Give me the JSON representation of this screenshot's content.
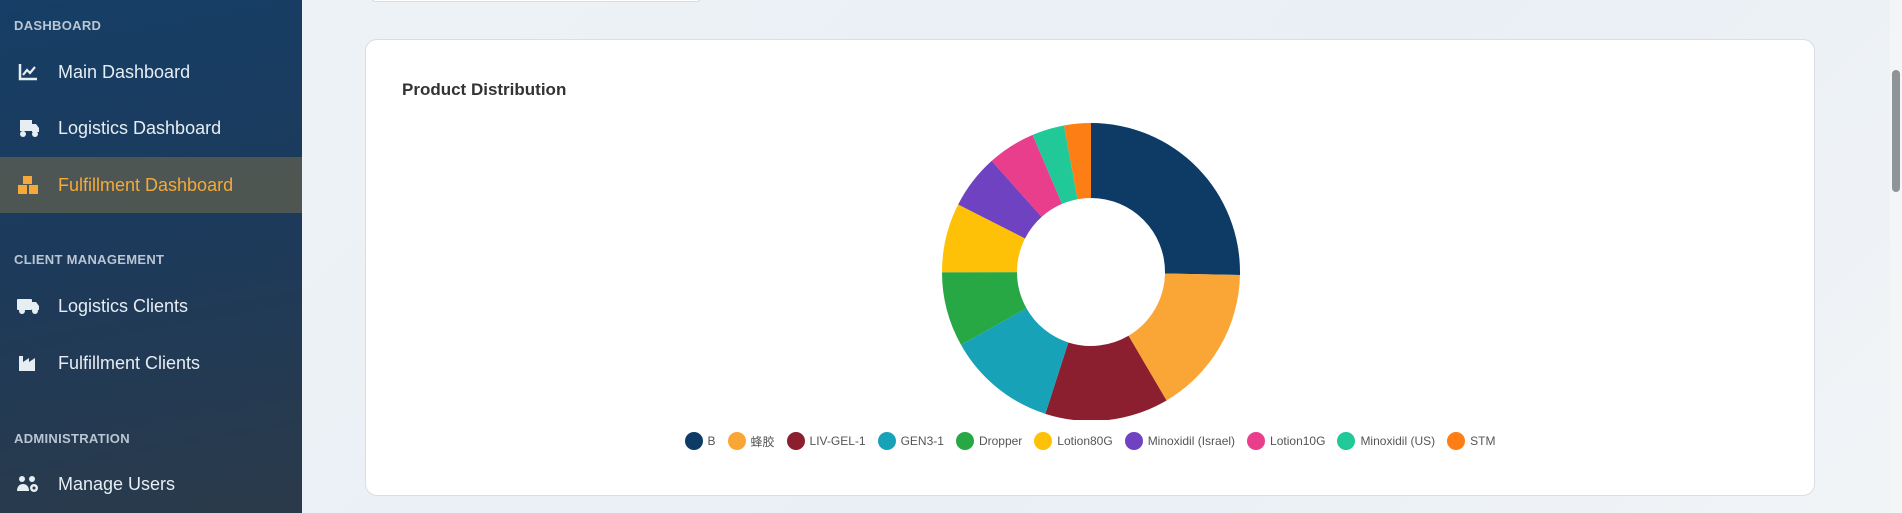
{
  "sidebar": {
    "sections": [
      "DASHBOARD",
      "CLIENT MANAGEMENT",
      "ADMINISTRATION"
    ],
    "items": [
      {
        "label": "Main Dashboard",
        "icon": "chart-line-icon"
      },
      {
        "label": "Logistics Dashboard",
        "icon": "truck-fast-icon"
      },
      {
        "label": "Fulfillment Dashboard",
        "icon": "boxes-icon",
        "active": true
      },
      {
        "label": "Logistics Clients",
        "icon": "truck-icon"
      },
      {
        "label": "Fulfillment Clients",
        "icon": "industry-icon"
      },
      {
        "label": "Manage Users",
        "icon": "users-cog-icon"
      }
    ],
    "active_color": "#f4a93a"
  },
  "card": {
    "title": "Product Distribution"
  },
  "chart_data": {
    "type": "pie",
    "donut": true,
    "title": "Product Distribution",
    "legend": "bottom",
    "categories": [
      "B",
      "蜂胶",
      "LIV-GEL-1",
      "GEN3-1",
      "Dropper",
      "Lotion80G",
      "Minoxidil (Israel)",
      "Lotion10G",
      "Minoxidil (US)",
      "STM"
    ],
    "values": [
      25.3,
      16.2,
      13.4,
      11.9,
      8.1,
      7.5,
      5.9,
      5.2,
      3.5,
      2.9
    ],
    "colors": [
      "#0d3b66",
      "#f9a636",
      "#8b1e2f",
      "#17a2b8",
      "#28a745",
      "#ffc107",
      "#6f42c1",
      "#e83e8c",
      "#20c997",
      "#fd7e14"
    ]
  }
}
